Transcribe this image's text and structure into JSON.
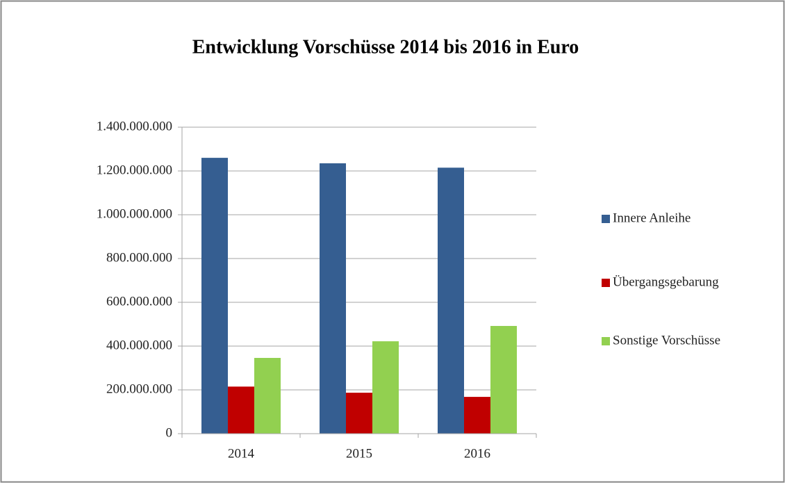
{
  "chart_data": {
    "type": "bar",
    "title": "Entwicklung Vorschüsse 2014 bis 2016 in Euro",
    "categories": [
      "2014",
      "2015",
      "2016"
    ],
    "series": [
      {
        "name": "Innere Anleihe",
        "color": "#355e91",
        "values": [
          1260000000,
          1235000000,
          1215000000
        ]
      },
      {
        "name": "Übergangsgebarung",
        "color": "#c00000",
        "values": [
          215000000,
          187000000,
          168000000
        ]
      },
      {
        "name": "Sonstige Vorschüsse",
        "color": "#92d050",
        "values": [
          346000000,
          422000000,
          492000000
        ]
      }
    ],
    "ylim": [
      0,
      1400000000
    ],
    "yticks": [
      0,
      {
        "value": 200000000,
        "label": "200.000.000"
      },
      {
        "value": 400000000,
        "label": "400.000.000"
      },
      {
        "value": 600000000,
        "label": "600.000.000"
      },
      {
        "value": 800000000,
        "label": "800.000.000"
      },
      {
        "value": 1000000000,
        "label": "1.000.000.000"
      },
      {
        "value": 1200000000,
        "label": "1.200.000.000"
      },
      {
        "value": 1400000000,
        "label": "1.400.000.000"
      }
    ],
    "grid": true,
    "legend": "right"
  }
}
